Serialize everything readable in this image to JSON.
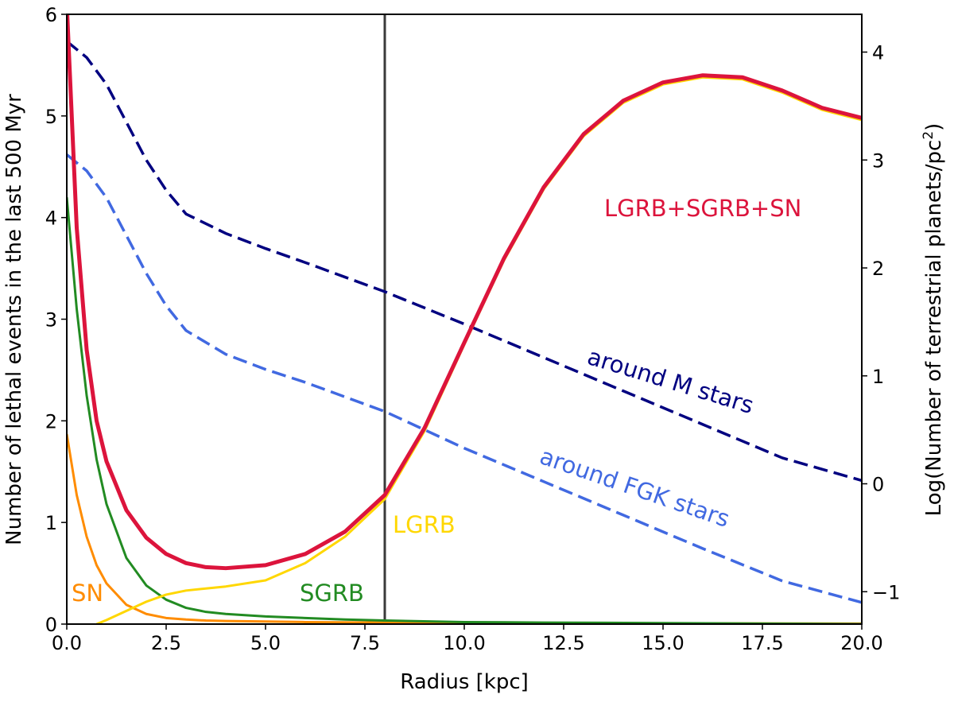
{
  "chart_data": {
    "type": "line",
    "xlabel": "Radius [kpc]",
    "ylabel_left": "Number of lethal events in the last 500 Myr",
    "ylabel_right": "Log(Number of terrestrial planets/pc",
    "ylabel_right_sup": "2",
    "ylabel_right_close": ")",
    "xlim": [
      0,
      20
    ],
    "ylim_left": [
      0,
      6
    ],
    "ylim_right": [
      -1.3,
      4.35
    ],
    "x_ticks": [
      "0.0",
      "2.5",
      "5.0",
      "7.5",
      "10.0",
      "12.5",
      "15.0",
      "17.5",
      "20.0"
    ],
    "y_left_ticks": [
      "0",
      "1",
      "2",
      "3",
      "4",
      "5",
      "6"
    ],
    "y_right_ticks": [
      "−1",
      "0",
      "1",
      "2",
      "3",
      "4"
    ],
    "vline_x": 8.0,
    "series": [
      {
        "name": "LGRB+SGRB+SN",
        "axis": "left",
        "color": "#dc143c",
        "style": "solid",
        "width": 5,
        "x": [
          0,
          0.25,
          0.5,
          0.75,
          1,
          1.5,
          2,
          2.5,
          3,
          3.5,
          4,
          5,
          6,
          7,
          8,
          9,
          10,
          11,
          12,
          13,
          14,
          15,
          16,
          17,
          18,
          19,
          20
        ],
        "y": [
          6.1,
          3.9,
          2.7,
          2.0,
          1.6,
          1.12,
          0.85,
          0.69,
          0.6,
          0.56,
          0.55,
          0.58,
          0.69,
          0.91,
          1.27,
          1.93,
          2.77,
          3.6,
          4.3,
          4.82,
          5.15,
          5.33,
          5.4,
          5.38,
          5.25,
          5.08,
          4.98
        ]
      },
      {
        "name": "LGRB",
        "axis": "left",
        "color": "#ffd700",
        "style": "solid",
        "width": 3,
        "x": [
          0.75,
          1,
          1.5,
          2,
          2.5,
          3,
          4,
          5,
          6,
          7,
          8,
          9,
          10,
          11,
          12,
          13,
          14,
          15,
          16,
          17,
          18,
          19,
          20
        ],
        "y": [
          0.0,
          0.04,
          0.13,
          0.22,
          0.29,
          0.33,
          0.37,
          0.43,
          0.6,
          0.86,
          1.23,
          1.9,
          2.75,
          3.58,
          4.28,
          4.8,
          5.13,
          5.31,
          5.38,
          5.36,
          5.23,
          5.06,
          4.96
        ]
      },
      {
        "name": "SGRB",
        "axis": "left",
        "color": "#228b22",
        "style": "solid",
        "width": 3,
        "x": [
          0,
          0.25,
          0.5,
          0.75,
          1,
          1.5,
          2,
          2.5,
          3,
          3.5,
          4,
          5,
          6,
          7,
          8,
          10,
          12,
          15,
          20
        ],
        "y": [
          4.2,
          3.1,
          2.25,
          1.62,
          1.18,
          0.65,
          0.38,
          0.24,
          0.16,
          0.12,
          0.1,
          0.075,
          0.06,
          0.045,
          0.035,
          0.02,
          0.015,
          0.01,
          0.0
        ]
      },
      {
        "name": "SN",
        "axis": "left",
        "color": "#ff8c00",
        "style": "solid",
        "width": 3,
        "x": [
          0,
          0.25,
          0.5,
          0.75,
          1,
          1.5,
          2,
          2.5,
          3,
          3.5,
          4,
          5,
          6,
          8,
          10,
          20
        ],
        "y": [
          1.87,
          1.27,
          0.86,
          0.58,
          0.4,
          0.19,
          0.1,
          0.06,
          0.045,
          0.035,
          0.03,
          0.025,
          0.02,
          0.015,
          0.01,
          0.005
        ]
      },
      {
        "name": "around M stars",
        "axis": "right",
        "color": "#000080",
        "style": "dashed",
        "width": 3.5,
        "x": [
          0,
          0.5,
          1,
          1.5,
          2,
          2.5,
          3,
          4,
          5,
          6,
          8,
          10,
          12,
          14,
          16,
          18,
          20
        ],
        "y": [
          4.1,
          3.95,
          3.7,
          3.35,
          3.0,
          2.72,
          2.5,
          2.32,
          2.18,
          2.05,
          1.78,
          1.48,
          1.17,
          0.86,
          0.55,
          0.24,
          0.03
        ]
      },
      {
        "name": "around FGK stars",
        "axis": "right",
        "color": "#4169e1",
        "style": "dashed",
        "width": 3.5,
        "x": [
          0,
          0.5,
          1,
          1.5,
          2,
          2.5,
          3,
          4,
          5,
          6,
          8,
          10,
          12,
          14,
          16,
          18,
          20
        ],
        "y": [
          3.05,
          2.9,
          2.65,
          2.3,
          1.95,
          1.65,
          1.42,
          1.2,
          1.06,
          0.94,
          0.67,
          0.33,
          0.02,
          -0.29,
          -0.6,
          -0.9,
          -1.1
        ]
      }
    ],
    "annotations": [
      {
        "text": "LGRB+SGRB+SN",
        "color": "#dc143c"
      },
      {
        "text": "around M stars",
        "color": "#000080"
      },
      {
        "text": "around FGK stars",
        "color": "#4169e1"
      },
      {
        "text": "LGRB",
        "color": "#ffd700"
      },
      {
        "text": "SGRB",
        "color": "#228b22"
      },
      {
        "text": "SN",
        "color": "#ff8c00"
      }
    ]
  }
}
